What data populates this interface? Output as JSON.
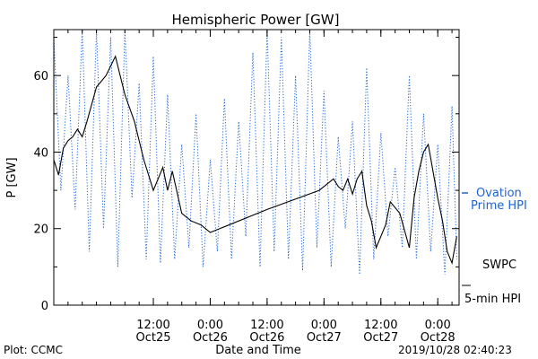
{
  "chart_data": {
    "type": "line",
    "title": "Hemispheric Power [GW]",
    "ylabel": "P [GW]",
    "xlabel": "Date and Time",
    "ylim": [
      0,
      72
    ],
    "xlim": [
      "2019-10-24 15:00",
      "2019-10-28 04:30"
    ],
    "y_ticks": [
      "0",
      "20",
      "40",
      "60"
    ],
    "x_ticks": [
      {
        "x": "2019-10-25 12:00",
        "time": "12:00",
        "date": "Oct25"
      },
      {
        "x": "2019-10-26 00:00",
        "time": "0:00",
        "date": "Oct26"
      },
      {
        "x": "2019-10-26 12:00",
        "time": "12:00",
        "date": "Oct26"
      },
      {
        "x": "2019-10-27 00:00",
        "time": "0:00",
        "date": "Oct27"
      },
      {
        "x": "2019-10-27 12:00",
        "time": "12:00",
        "date": "Oct27"
      },
      {
        "x": "2019-10-28 00:00",
        "time": "0:00",
        "date": "Oct28"
      }
    ],
    "series": [
      {
        "name": "5-min HPI",
        "name_top": "SWPC",
        "style": "solid",
        "color": "#000000",
        "x": [
          "2019-10-24 15:00",
          "2019-10-24 16:00",
          "2019-10-24 17:00",
          "2019-10-24 18:00",
          "2019-10-24 19:00",
          "2019-10-24 20:00",
          "2019-10-24 21:00",
          "2019-10-24 22:00",
          "2019-10-25 00:00",
          "2019-10-25 02:00",
          "2019-10-25 04:00",
          "2019-10-25 06:00",
          "2019-10-25 08:00",
          "2019-10-25 10:00",
          "2019-10-25 11:00",
          "2019-10-25 12:00",
          "2019-10-25 13:00",
          "2019-10-25 14:00",
          "2019-10-25 15:00",
          "2019-10-25 16:00",
          "2019-10-25 18:00",
          "2019-10-25 20:00",
          "2019-10-25 22:00",
          "2019-10-26 00:00",
          "2019-10-26 12:00",
          "2019-10-26 23:00",
          "2019-10-27 00:00",
          "2019-10-27 01:00",
          "2019-10-27 02:00",
          "2019-10-27 03:00",
          "2019-10-27 04:00",
          "2019-10-27 05:00",
          "2019-10-27 06:00",
          "2019-10-27 07:00",
          "2019-10-27 08:00",
          "2019-10-27 09:00",
          "2019-10-27 10:00",
          "2019-10-27 11:00",
          "2019-10-27 12:00",
          "2019-10-27 13:00",
          "2019-10-27 14:00",
          "2019-10-27 16:00",
          "2019-10-27 18:00",
          "2019-10-27 19:00",
          "2019-10-27 20:00",
          "2019-10-27 21:00",
          "2019-10-27 22:00",
          "2019-10-27 23:00",
          "2019-10-28 00:00",
          "2019-10-28 01:00",
          "2019-10-28 02:00",
          "2019-10-28 03:00",
          "2019-10-28 04:00"
        ],
        "values": [
          38,
          34,
          41,
          43,
          44,
          46,
          44,
          48,
          57,
          60,
          65,
          55,
          48,
          38,
          34,
          30,
          33,
          36,
          30,
          35,
          24,
          22,
          21,
          19,
          25,
          30,
          31,
          32,
          33,
          31,
          30,
          33,
          29,
          33,
          35,
          26,
          22,
          15,
          18,
          21,
          27,
          24,
          15,
          28,
          35,
          40,
          42,
          35,
          28,
          22,
          14,
          11,
          18
        ]
      },
      {
        "name": "Ovation",
        "name_line2": "Prime HPI",
        "style": "dotted",
        "color": "#1f63d6",
        "x": [
          "2019-10-24 15:00",
          "2019-10-24 16:30",
          "2019-10-24 18:00",
          "2019-10-24 19:30",
          "2019-10-24 21:00",
          "2019-10-24 22:30",
          "2019-10-25 00:00",
          "2019-10-25 01:30",
          "2019-10-25 03:00",
          "2019-10-25 04:30",
          "2019-10-25 06:00",
          "2019-10-25 07:30",
          "2019-10-25 09:00",
          "2019-10-25 10:30",
          "2019-10-25 12:00",
          "2019-10-25 13:30",
          "2019-10-25 15:00",
          "2019-10-25 16:30",
          "2019-10-25 18:00",
          "2019-10-25 19:30",
          "2019-10-25 21:00",
          "2019-10-25 22:30",
          "2019-10-26 00:00",
          "2019-10-26 01:30",
          "2019-10-26 03:00",
          "2019-10-26 04:30",
          "2019-10-26 06:00",
          "2019-10-26 07:30",
          "2019-10-26 09:00",
          "2019-10-26 10:30",
          "2019-10-26 12:00",
          "2019-10-26 13:30",
          "2019-10-26 15:00",
          "2019-10-26 16:30",
          "2019-10-26 18:00",
          "2019-10-26 19:30",
          "2019-10-26 21:00",
          "2019-10-26 22:30",
          "2019-10-27 00:00",
          "2019-10-27 01:30",
          "2019-10-27 03:00",
          "2019-10-27 04:30",
          "2019-10-27 06:00",
          "2019-10-27 07:30",
          "2019-10-27 09:00",
          "2019-10-27 10:30",
          "2019-10-27 12:00",
          "2019-10-27 13:30",
          "2019-10-27 15:00",
          "2019-10-27 16:30",
          "2019-10-27 18:00",
          "2019-10-27 19:30",
          "2019-10-27 21:00",
          "2019-10-27 22:30",
          "2019-10-28 00:00",
          "2019-10-28 01:30",
          "2019-10-28 03:00",
          "2019-10-28 04:00"
        ],
        "values": [
          70,
          30,
          60,
          25,
          72,
          14,
          72,
          20,
          70,
          10,
          72,
          28,
          58,
          12,
          65,
          11,
          55,
          12,
          42,
          15,
          50,
          10,
          38,
          14,
          54,
          12,
          48,
          18,
          66,
          10,
          72,
          14,
          70,
          12,
          60,
          9,
          72,
          15,
          56,
          10,
          44,
          20,
          48,
          8,
          62,
          12,
          45,
          18,
          36,
          15,
          60,
          12,
          50,
          14,
          42,
          8,
          52,
          12
        ]
      }
    ],
    "legend": "right",
    "grid": false
  },
  "footer": {
    "plot_credit": "Plot: CCMC",
    "timestamp": "2019/10/28 02:40:23"
  }
}
